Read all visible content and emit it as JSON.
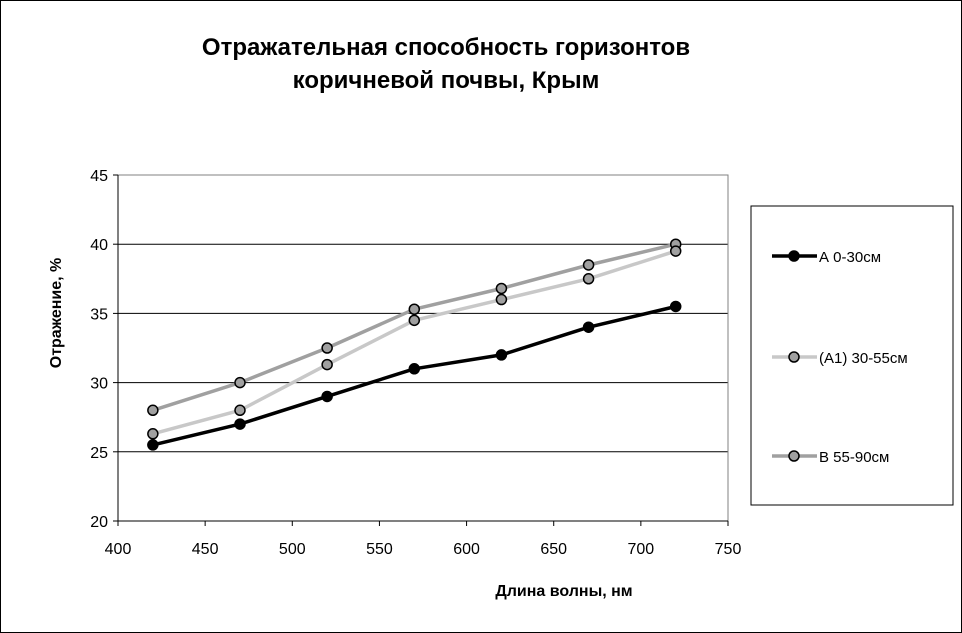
{
  "chart_data": {
    "type": "line",
    "title_lines": [
      "Отражательная способность горизонтов",
      "коричневой почвы, Крым"
    ],
    "xlabel": "Длина волны, нм",
    "ylabel": "Отражение, %",
    "xlim": [
      400,
      750
    ],
    "ylim": [
      20,
      45
    ],
    "x_ticks": [
      400,
      450,
      500,
      550,
      600,
      650,
      700,
      750
    ],
    "y_ticks": [
      20,
      25,
      30,
      35,
      40,
      45
    ],
    "grid": "horizontal",
    "legend_position": "right",
    "x": [
      420,
      470,
      520,
      570,
      620,
      670,
      720
    ],
    "series": [
      {
        "name": "А 0-30см",
        "values": [
          25.5,
          27.0,
          29.0,
          31.0,
          32.0,
          34.0,
          35.5
        ],
        "line_color": "#000000",
        "marker_color": "#000000"
      },
      {
        "name": "(А1) 30-55см",
        "values": [
          26.3,
          28.0,
          31.3,
          34.5,
          36.0,
          37.5,
          39.5
        ],
        "line_color": "#c8c8c8",
        "marker_color": "#a0a0a0"
      },
      {
        "name": "В 55-90см",
        "values": [
          28.0,
          30.0,
          32.5,
          35.3,
          36.8,
          38.5,
          40.0
        ],
        "line_color": "#a0a0a0",
        "marker_color": "#a0a0a0"
      }
    ]
  }
}
